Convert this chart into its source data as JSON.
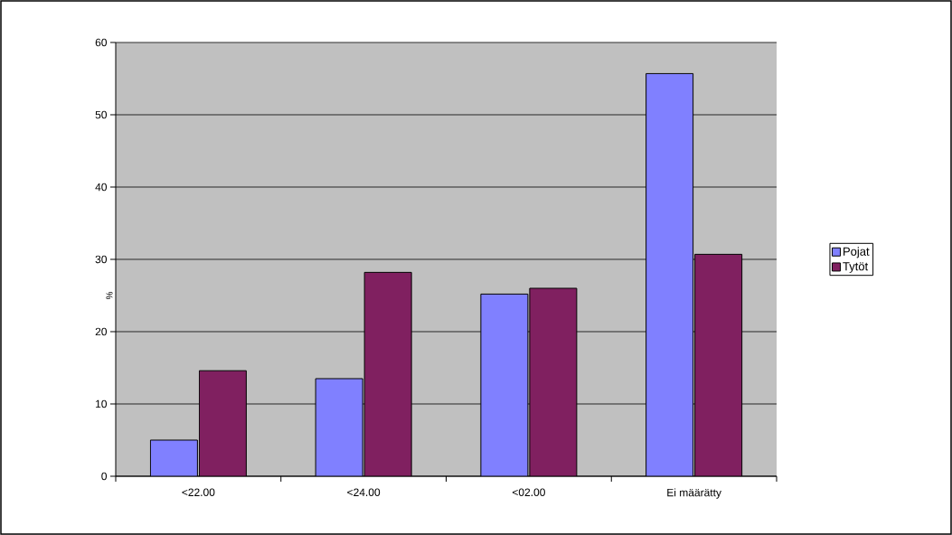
{
  "chart_data": {
    "type": "bar",
    "ylabel": "%",
    "categories": [
      "<22.00",
      "<24.00",
      "<02.00",
      "Ei määrätty"
    ],
    "series": [
      {
        "name": "Pojat",
        "color": "#8080ff",
        "values": [
          5.0,
          13.5,
          25.2,
          55.7
        ]
      },
      {
        "name": "Tytöt",
        "color": "#802060",
        "values": [
          14.6,
          28.2,
          26.0,
          30.7
        ]
      }
    ],
    "ylim": [
      0,
      60
    ],
    "yticks": [
      0,
      10,
      20,
      30,
      40,
      50,
      60
    ],
    "grid": "y",
    "legend": "right"
  }
}
